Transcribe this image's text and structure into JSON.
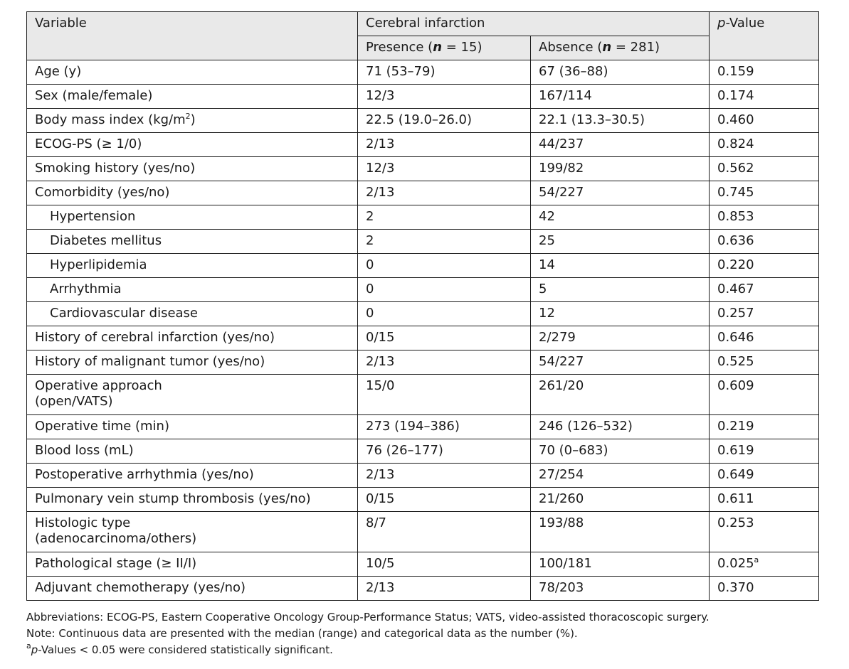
{
  "header": {
    "variable": "Variable",
    "group": "Cerebral infarction",
    "pvalue_italic": "p",
    "pvalue_rest": "-Value",
    "presence": {
      "pre": "Presence (",
      "n": "n",
      "post": " = 15)"
    },
    "absence": {
      "pre": "Absence (",
      "n": "n",
      "post": " = 281)"
    }
  },
  "rows": [
    {
      "variable": "Age (y)",
      "presence": "71 (53–79)",
      "absence": "67 (36–88)",
      "p": "0.159"
    },
    {
      "variable": "Sex (male/female)",
      "presence": "12/3",
      "absence": "167/114",
      "p": "0.174"
    },
    {
      "variable": "Body mass index (kg/m",
      "variable_sup": "2",
      "variable_post": ")",
      "presence": "22.5 (19.0–26.0)",
      "absence": "22.1 (13.3–30.5)",
      "p": "0.460"
    },
    {
      "variable": "ECOG-PS (≥ 1/0)",
      "presence": "2/13",
      "absence": "44/237",
      "p": "0.824"
    },
    {
      "variable": "Smoking history (yes/no)",
      "presence": "12/3",
      "absence": "199/82",
      "p": "0.562"
    },
    {
      "variable": "Comorbidity (yes/no)",
      "presence": "2/13",
      "absence": "54/227",
      "p": "0.745"
    },
    {
      "variable": "Hypertension",
      "presence": "2",
      "absence": "42",
      "p": "0.853",
      "indent": true
    },
    {
      "variable": "Diabetes mellitus",
      "presence": "2",
      "absence": "25",
      "p": "0.636",
      "indent": true
    },
    {
      "variable": "Hyperlipidemia",
      "presence": "0",
      "absence": "14",
      "p": "0.220",
      "indent": true
    },
    {
      "variable": "Arrhythmia",
      "presence": "0",
      "absence": "5",
      "p": "0.467",
      "indent": true
    },
    {
      "variable": "Cardiovascular disease",
      "presence": "0",
      "absence": "12",
      "p": "0.257",
      "indent": true
    },
    {
      "variable": "History of cerebral infarction (yes/no)",
      "presence": "0/15",
      "absence": "2/279",
      "p": "0.646"
    },
    {
      "variable": "History of malignant tumor (yes/no)",
      "presence": "2/13",
      "absence": "54/227",
      "p": "0.525"
    },
    {
      "variable": "Operative approach",
      "variable_line2": "(open/VATS)",
      "presence": "15/0",
      "absence": "261/20",
      "p": "0.609"
    },
    {
      "variable": "Operative time (min)",
      "presence": "273 (194–386)",
      "absence": "246 (126–532)",
      "p": "0.219"
    },
    {
      "variable": "Blood loss (mL)",
      "presence": "76 (26–177)",
      "absence": "70 (0–683)",
      "p": "0.619"
    },
    {
      "variable": "Postoperative arrhythmia (yes/no)",
      "presence": "2/13",
      "absence": "27/254",
      "p": "0.649"
    },
    {
      "variable": "Pulmonary vein stump thrombosis (yes/no)",
      "presence": "0/15",
      "absence": "21/260",
      "p": "0.611"
    },
    {
      "variable": "Histologic type",
      "variable_line2": "(adenocarcinoma/others)",
      "presence": "8/7",
      "absence": "193/88",
      "p": "0.253"
    },
    {
      "variable": "Pathological stage (≥ II/I)",
      "presence": "10/5",
      "absence": "100/181",
      "p": "0.025",
      "p_sup": "a"
    },
    {
      "variable": "Adjuvant chemotherapy (yes/no)",
      "presence": "2/13",
      "absence": "78/203",
      "p": "0.370"
    }
  ],
  "footnotes": {
    "abbreviations": "Abbreviations: ECOG-PS, Eastern Cooperative Oncology Group-Performance Status; VATS, video-assisted thoracoscopic surgery.",
    "note": "Note: Continuous data are presented with the median (range) and categorical data as the number (%).",
    "sig_sup": "a",
    "sig_italic": "p",
    "sig_rest": "-Values < 0.05 were considered statistically significant."
  }
}
